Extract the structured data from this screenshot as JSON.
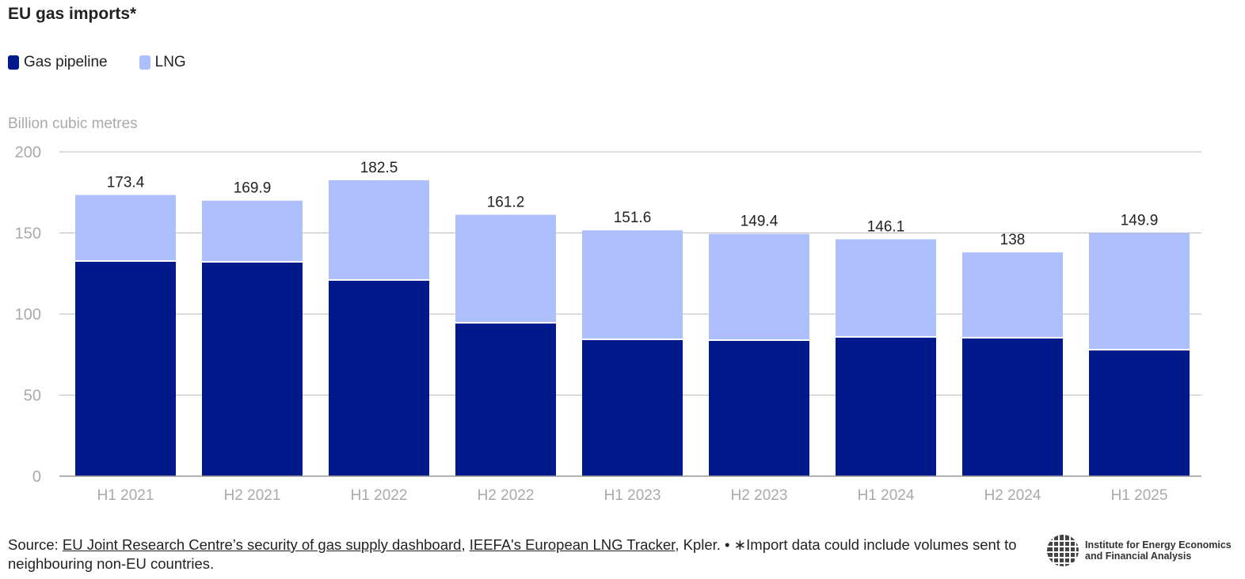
{
  "title": "EU gas imports*",
  "legend": [
    {
      "label": "Gas pipeline",
      "color": "#001A8C"
    },
    {
      "label": "LNG",
      "color": "#ADBFFD"
    }
  ],
  "chart_data": {
    "type": "bar",
    "stacked": true,
    "title": "EU gas imports*",
    "ylabel": "Billion cubic metres",
    "ylim": [
      0,
      200
    ],
    "yticks": [
      0,
      50,
      100,
      150,
      200
    ],
    "grid": true,
    "legend_position": "top-left",
    "categories": [
      "H1 2021",
      "H2 2021",
      "H1 2022",
      "H2 2022",
      "H1 2023",
      "H2 2023",
      "H1 2024",
      "H2 2024",
      "H1 2025"
    ],
    "series": [
      {
        "name": "Gas pipeline",
        "color": "#001A8C",
        "values": [
          132.7,
          132.2,
          121.0,
          94.6,
          84.4,
          83.9,
          85.9,
          85.4,
          78.0
        ]
      },
      {
        "name": "LNG",
        "color": "#ADBFFD",
        "values": [
          40.7,
          37.7,
          61.5,
          66.6,
          67.2,
          65.5,
          60.2,
          52.6,
          71.9
        ]
      }
    ],
    "totals": [
      "173.4",
      "169.9",
      "182.5",
      "161.2",
      "151.6",
      "149.4",
      "146.1",
      "138",
      "149.9"
    ]
  },
  "footer": {
    "prefix": "Source: ",
    "link1": "EU Joint Research Centre’s security of gas supply dashboard",
    "sep1": ", ",
    "link2": "IEEFA's European LNG Tracker",
    "rest": ", Kpler. • ∗Import data could include volumes sent to neighbouring non-EU countries."
  },
  "logo": {
    "line1": "Institute for Energy Economics",
    "line2": "and Financial Analysis"
  }
}
